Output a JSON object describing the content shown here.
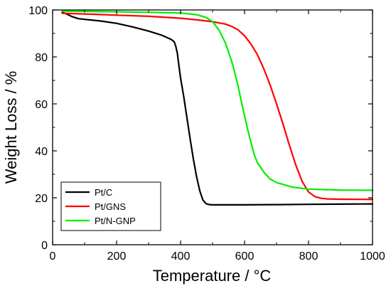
{
  "chart_data": {
    "type": "line",
    "xlabel": "Temperature / °C",
    "ylabel": "Weight Loss / %",
    "xlim": [
      0,
      1000
    ],
    "ylim": [
      0,
      100
    ],
    "xticks": [
      0,
      200,
      400,
      600,
      800,
      1000
    ],
    "yticks": [
      0,
      20,
      40,
      60,
      80,
      100
    ],
    "grid": false,
    "legend_position": "bottom-left",
    "series": [
      {
        "name": "Pt/C",
        "color": "#000000",
        "points": [
          [
            30,
            99
          ],
          [
            45,
            98.2
          ],
          [
            60,
            97.2
          ],
          [
            80,
            96.3
          ],
          [
            100,
            96.0
          ],
          [
            150,
            95.3
          ],
          [
            200,
            94.3
          ],
          [
            250,
            92.8
          ],
          [
            300,
            91.0
          ],
          [
            340,
            89.3
          ],
          [
            370,
            87.5
          ],
          [
            380,
            86.5
          ],
          [
            385,
            84.5
          ],
          [
            390,
            81.5
          ],
          [
            395,
            76.0
          ],
          [
            400,
            71.0
          ],
          [
            410,
            63.0
          ],
          [
            420,
            54.0
          ],
          [
            430,
            45.0
          ],
          [
            440,
            36.5
          ],
          [
            450,
            29.0
          ],
          [
            460,
            23.0
          ],
          [
            470,
            19.0
          ],
          [
            480,
            17.5
          ],
          [
            490,
            17.1
          ],
          [
            500,
            17.0
          ],
          [
            600,
            17.0
          ],
          [
            700,
            17.1
          ],
          [
            800,
            17.2
          ],
          [
            900,
            17.3
          ],
          [
            1000,
            17.4
          ]
        ]
      },
      {
        "name": "Pt/GNS",
        "color": "#ff0000",
        "points": [
          [
            30,
            98.6
          ],
          [
            100,
            98.3
          ],
          [
            200,
            97.8
          ],
          [
            300,
            97.3
          ],
          [
            400,
            96.5
          ],
          [
            450,
            95.8
          ],
          [
            500,
            95.0
          ],
          [
            540,
            94.0
          ],
          [
            560,
            93.0
          ],
          [
            580,
            91.5
          ],
          [
            600,
            89.0
          ],
          [
            620,
            85.5
          ],
          [
            640,
            81.0
          ],
          [
            660,
            75.0
          ],
          [
            680,
            68.0
          ],
          [
            700,
            60.0
          ],
          [
            720,
            51.5
          ],
          [
            740,
            42.5
          ],
          [
            760,
            34.0
          ],
          [
            780,
            27.0
          ],
          [
            800,
            22.5
          ],
          [
            820,
            20.5
          ],
          [
            840,
            19.8
          ],
          [
            860,
            19.5
          ],
          [
            900,
            19.4
          ],
          [
            1000,
            19.3
          ]
        ]
      },
      {
        "name": "Pt/N-GNP",
        "color": "#00ee00",
        "points": [
          [
            30,
            99.5
          ],
          [
            100,
            99.4
          ],
          [
            200,
            99.2
          ],
          [
            300,
            99.0
          ],
          [
            400,
            98.7
          ],
          [
            450,
            98.0
          ],
          [
            480,
            96.8
          ],
          [
            500,
            95.0
          ],
          [
            520,
            91.5
          ],
          [
            540,
            86.0
          ],
          [
            550,
            82.0
          ],
          [
            560,
            78.0
          ],
          [
            570,
            73.0
          ],
          [
            580,
            67.5
          ],
          [
            590,
            61.0
          ],
          [
            600,
            55.0
          ],
          [
            610,
            49.0
          ],
          [
            620,
            43.5
          ],
          [
            630,
            38.5
          ],
          [
            640,
            35.0
          ],
          [
            660,
            31.0
          ],
          [
            680,
            28.0
          ],
          [
            700,
            26.5
          ],
          [
            750,
            24.5
          ],
          [
            800,
            23.7
          ],
          [
            900,
            23.3
          ],
          [
            1000,
            23.2
          ]
        ]
      }
    ]
  }
}
